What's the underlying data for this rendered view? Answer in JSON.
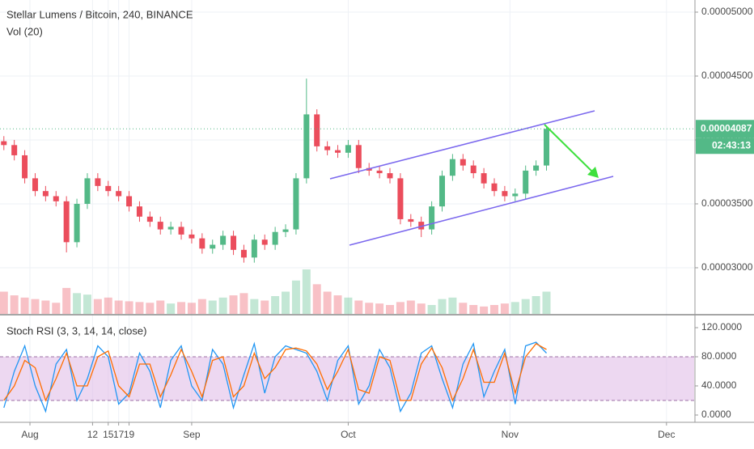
{
  "chart_data": [
    {
      "type": "candlestick",
      "title": "Stellar Lumens / Bitcoin, 240, BINANCE",
      "subtitle": "Vol (20)",
      "x": [
        -5,
        -3,
        -1,
        1,
        3,
        5,
        7,
        9,
        11,
        13,
        15,
        17,
        19,
        21,
        23,
        25,
        27,
        29,
        31,
        33,
        35,
        37,
        39,
        41,
        43,
        45,
        47,
        49,
        51,
        53,
        55,
        57,
        59,
        61,
        63,
        65,
        67,
        69,
        71,
        73,
        75,
        77,
        79,
        81,
        83,
        85,
        87,
        89,
        91,
        93,
        95,
        97,
        99
      ],
      "open": [
        3.99e-05,
        3.96e-05,
        3.88e-05,
        3.7e-05,
        3.6e-05,
        3.56e-05,
        3.52e-05,
        3.2e-05,
        3.5e-05,
        3.7e-05,
        3.64e-05,
        3.6e-05,
        3.56e-05,
        3.48e-05,
        3.4e-05,
        3.36e-05,
        3.3e-05,
        3.32e-05,
        3.26e-05,
        3.23e-05,
        3.15e-05,
        3.18e-05,
        3.25e-05,
        3.14e-05,
        3.08e-05,
        3.22e-05,
        3.18e-05,
        3.28e-05,
        3.3e-05,
        3.7e-05,
        4.2e-05,
        3.95e-05,
        3.92e-05,
        3.9e-05,
        3.96e-05,
        3.78e-05,
        3.76e-05,
        3.74e-05,
        3.7e-05,
        3.38e-05,
        3.36e-05,
        3.3e-05,
        3.48e-05,
        3.72e-05,
        3.85e-05,
        3.8e-05,
        3.74e-05,
        3.66e-05,
        3.6e-05,
        3.56e-05,
        3.58e-05,
        3.76e-05,
        3.8e-05
      ],
      "high": [
        4.03e-05,
        4e-05,
        3.92e-05,
        3.74e-05,
        3.64e-05,
        3.6e-05,
        3.56e-05,
        3.54e-05,
        3.74e-05,
        3.74e-05,
        3.68e-05,
        3.64e-05,
        3.6e-05,
        3.52e-05,
        3.44e-05,
        3.4e-05,
        3.36e-05,
        3.36e-05,
        3.3e-05,
        3.27e-05,
        3.22e-05,
        3.29e-05,
        3.29e-05,
        3.18e-05,
        3.26e-05,
        3.26e-05,
        3.32e-05,
        3.34e-05,
        3.74e-05,
        4.48e-05,
        4.24e-05,
        3.99e-05,
        3.96e-05,
        4e-05,
        4e-05,
        3.82e-05,
        3.8e-05,
        3.78e-05,
        3.74e-05,
        3.42e-05,
        3.4e-05,
        3.52e-05,
        3.76e-05,
        3.89e-05,
        3.89e-05,
        3.84e-05,
        3.78e-05,
        3.7e-05,
        3.64e-05,
        3.62e-05,
        3.8e-05,
        3.84e-05,
        4.11e-05
      ],
      "low": [
        3.92e-05,
        3.84e-05,
        3.66e-05,
        3.56e-05,
        3.52e-05,
        3.48e-05,
        3.12e-05,
        3.16e-05,
        3.46e-05,
        3.6e-05,
        3.56e-05,
        3.52e-05,
        3.44e-05,
        3.36e-05,
        3.32e-05,
        3.26e-05,
        3.26e-05,
        3.22e-05,
        3.19e-05,
        3.11e-05,
        3.11e-05,
        3.14e-05,
        3.1e-05,
        3.04e-05,
        3.04e-05,
        3.14e-05,
        3.14e-05,
        3.24e-05,
        3.26e-05,
        3.66e-05,
        3.91e-05,
        3.88e-05,
        3.86e-05,
        3.86e-05,
        3.74e-05,
        3.72e-05,
        3.7e-05,
        3.66e-05,
        3.34e-05,
        3.32e-05,
        3.24e-05,
        3.26e-05,
        3.44e-05,
        3.68e-05,
        3.76e-05,
        3.7e-05,
        3.62e-05,
        3.56e-05,
        3.52e-05,
        3.52e-05,
        3.54e-05,
        3.72e-05,
        3.76e-05
      ],
      "close": [
        3.96e-05,
        3.88e-05,
        3.7e-05,
        3.6e-05,
        3.56e-05,
        3.52e-05,
        3.2e-05,
        3.5e-05,
        3.7e-05,
        3.64e-05,
        3.6e-05,
        3.56e-05,
        3.48e-05,
        3.4e-05,
        3.36e-05,
        3.3e-05,
        3.32e-05,
        3.26e-05,
        3.23e-05,
        3.15e-05,
        3.18e-05,
        3.25e-05,
        3.14e-05,
        3.08e-05,
        3.22e-05,
        3.18e-05,
        3.28e-05,
        3.3e-05,
        3.7e-05,
        4.2e-05,
        3.95e-05,
        3.92e-05,
        3.9e-05,
        3.96e-05,
        3.78e-05,
        3.76e-05,
        3.74e-05,
        3.7e-05,
        3.38e-05,
        3.36e-05,
        3.3e-05,
        3.48e-05,
        3.72e-05,
        3.85e-05,
        3.8e-05,
        3.74e-05,
        3.66e-05,
        3.6e-05,
        3.56e-05,
        3.58e-05,
        3.76e-05,
        3.8e-05,
        4.087e-05
      ],
      "volume": [
        30,
        25,
        22,
        20,
        18,
        15,
        35,
        28,
        26,
        20,
        22,
        18,
        17,
        16,
        15,
        18,
        14,
        16,
        15,
        20,
        18,
        22,
        25,
        28,
        20,
        18,
        24,
        30,
        45,
        60,
        40,
        30,
        25,
        22,
        18,
        15,
        14,
        12,
        16,
        18,
        14,
        12,
        20,
        22,
        15,
        12,
        10,
        12,
        14,
        16,
        20,
        24,
        30
      ],
      "up_color": "#53b987",
      "down_color": "#eb4d5c",
      "xlim": [
        -5.74,
        127.3
      ],
      "xticks": [
        {
          "value": 0,
          "label": "Aug"
        },
        12,
        {
          "value": 31,
          "label": "Sep"
        },
        17,
        {
          "value": 61,
          "label": "Oct"
        },
        15,
        {
          "value": 92,
          "label": "Nov"
        },
        19,
        {
          "value": 122,
          "label": "Dec"
        }
      ],
      "ylim": [
        2.639e-05,
        5.095e-05
      ],
      "yticks": [
        {
          "value": 3e-05,
          "label": "0.00003000"
        },
        {
          "value": 3.5e-05,
          "label": "0.00003500"
        },
        {
          "value": 4e-05,
          "label": "0.00004000"
        },
        {
          "value": 4.5e-05,
          "label": "0.00004500"
        },
        {
          "value": 5e-05,
          "label": "0.00005000"
        }
      ],
      "last_price": {
        "value": 4.087e-05,
        "label": "0.00004087"
      },
      "countdown": "02:43:13",
      "grid": true
    },
    {
      "type": "line",
      "title": "Stoch RSI (3, 3, 14, 14, close)",
      "x": [
        -5,
        -3,
        -1,
        1,
        3,
        5,
        7,
        9,
        11,
        13,
        15,
        17,
        19,
        21,
        23,
        25,
        27,
        29,
        31,
        33,
        35,
        37,
        39,
        41,
        43,
        45,
        47,
        49,
        51,
        53,
        55,
        57,
        59,
        61,
        63,
        65,
        67,
        69,
        71,
        73,
        75,
        77,
        79,
        81,
        83,
        85,
        87,
        89,
        91,
        93,
        95,
        97,
        99
      ],
      "series": [
        {
          "color": "#2196f3",
          "values": [
            10,
            60,
            95,
            40,
            5,
            70,
            90,
            20,
            50,
            95,
            80,
            15,
            30,
            85,
            60,
            10,
            75,
            95,
            40,
            20,
            90,
            70,
            10,
            55,
            98,
            30,
            80,
            95,
            90,
            85,
            60,
            20,
            75,
            95,
            15,
            40,
            90,
            65,
            5,
            30,
            85,
            95,
            50,
            10,
            70,
            98,
            25,
            60,
            90,
            15,
            95,
            100,
            85
          ]
        },
        {
          "color": "#ff6d00",
          "values": [
            20,
            40,
            75,
            65,
            20,
            50,
            85,
            40,
            40,
            80,
            88,
            40,
            25,
            70,
            70,
            25,
            55,
            90,
            60,
            25,
            75,
            80,
            25,
            40,
            85,
            50,
            65,
            90,
            92,
            88,
            70,
            35,
            60,
            90,
            35,
            30,
            80,
            75,
            20,
            20,
            70,
            92,
            65,
            20,
            50,
            90,
            45,
            45,
            85,
            30,
            80,
            98,
            90
          ]
        }
      ],
      "band": [
        20,
        80
      ],
      "ylim": [
        -10,
        136.7
      ],
      "yticks": [
        {
          "value": 0,
          "label": "0.0000"
        },
        {
          "value": 40,
          "label": "40.0000"
        },
        {
          "value": 80,
          "label": "80.0000"
        },
        {
          "value": 120,
          "label": "120.0000"
        }
      ]
    }
  ]
}
